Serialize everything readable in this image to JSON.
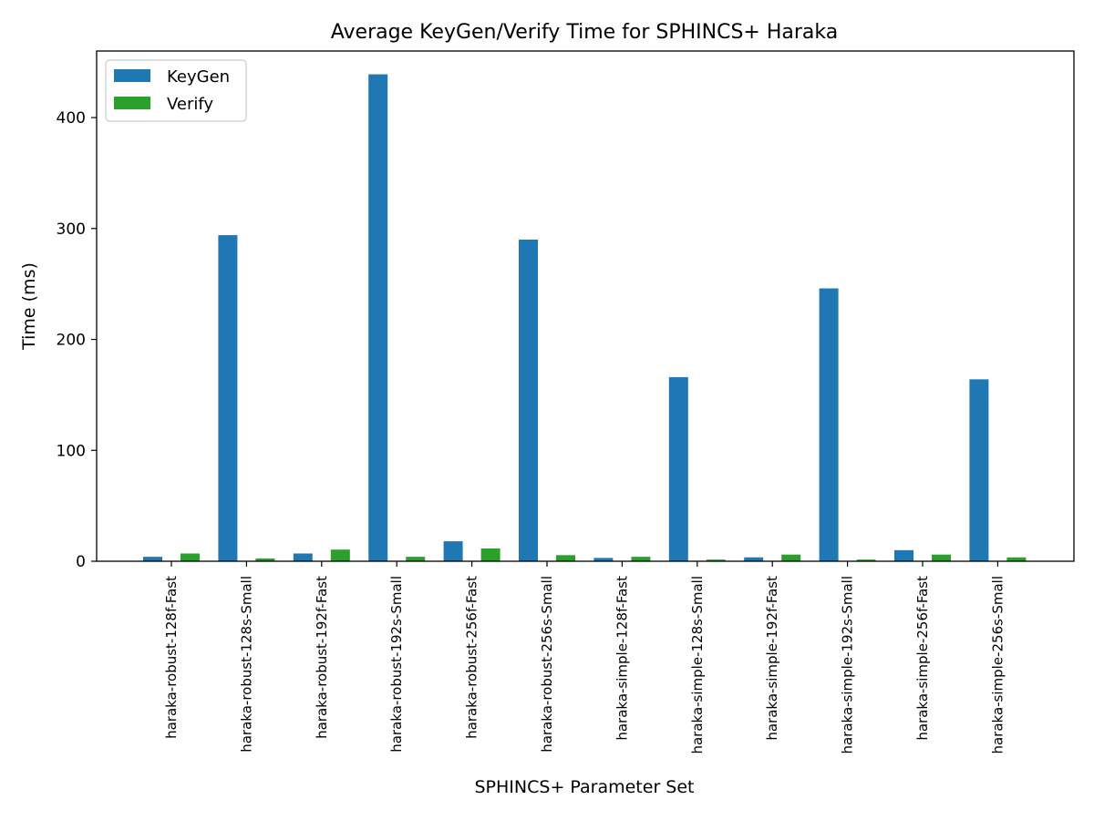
{
  "chart_data": {
    "type": "bar",
    "title": "Average KeyGen/Verify Time for SPHINCS+ Haraka",
    "xlabel": "SPHINCS+ Parameter Set",
    "ylabel": "Time (ms)",
    "ylim": [
      0,
      460
    ],
    "yticks": [
      0,
      100,
      200,
      300,
      400
    ],
    "grid": false,
    "legend_position": "top-left",
    "categories": [
      "haraka-robust-128f-Fast",
      "haraka-robust-128s-Small",
      "haraka-robust-192f-Fast",
      "haraka-robust-192s-Small",
      "haraka-robust-256f-Fast",
      "haraka-robust-256s-Small",
      "haraka-simple-128f-Fast",
      "haraka-simple-128s-Small",
      "haraka-simple-192f-Fast",
      "haraka-simple-192s-Small",
      "haraka-simple-256f-Fast",
      "haraka-simple-256s-Small"
    ],
    "series": [
      {
        "name": "KeyGen",
        "color": "#1f77b4",
        "values": [
          4,
          294,
          7,
          439,
          18,
          290,
          3,
          166,
          3.5,
          246,
          10,
          164
        ]
      },
      {
        "name": "Verify",
        "color": "#2ca02c",
        "values": [
          7,
          2.5,
          10.5,
          4,
          11.5,
          5.5,
          4,
          1.5,
          6,
          1.5,
          6,
          3.5
        ]
      }
    ]
  }
}
